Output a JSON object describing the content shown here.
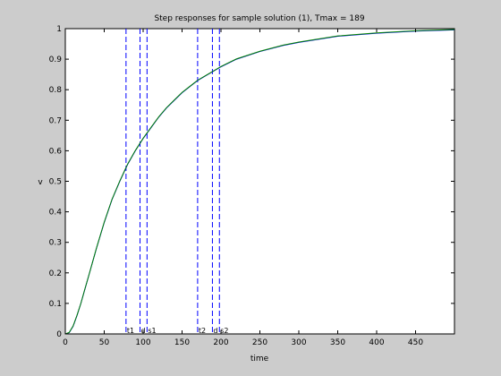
{
  "figure": {
    "background": "#cccccc"
  },
  "chart_data": {
    "type": "line",
    "title": "Step responses for sample solution (1), Tmax = 189",
    "xlabel": "time",
    "ylabel": "v",
    "xlim": [
      0,
      500
    ],
    "ylim": [
      0,
      1
    ],
    "grid": false,
    "xticks": [
      0,
      50,
      100,
      150,
      200,
      250,
      300,
      350,
      400,
      450
    ],
    "yticks": [
      0,
      0.1,
      0.2,
      0.3,
      0.4,
      0.5,
      0.6,
      0.7,
      0.8,
      0.9,
      1
    ],
    "series": [
      {
        "color": "#0000ff",
        "style": "solid",
        "x": [
          0,
          5,
          10,
          15,
          20,
          25,
          30,
          40,
          50,
          60,
          70,
          80,
          90,
          100,
          110,
          120,
          130,
          140,
          150,
          160,
          170,
          180,
          190,
          200,
          220,
          250,
          280,
          300,
          350,
          400,
          450,
          500
        ],
        "y": [
          0,
          0.004,
          0.025,
          0.06,
          0.1,
          0.145,
          0.19,
          0.28,
          0.365,
          0.44,
          0.5,
          0.555,
          0.6,
          0.64,
          0.675,
          0.71,
          0.74,
          0.765,
          0.79,
          0.81,
          0.83,
          0.845,
          0.86,
          0.875,
          0.9,
          0.925,
          0.945,
          0.955,
          0.975,
          0.985,
          0.992,
          0.996
        ]
      },
      {
        "color": "#008000",
        "style": "solid",
        "x": [
          0,
          5,
          10,
          15,
          20,
          25,
          30,
          40,
          50,
          60,
          70,
          80,
          90,
          100,
          110,
          120,
          130,
          140,
          150,
          160,
          170,
          180,
          190,
          200,
          220,
          250,
          280,
          300,
          350,
          400,
          450,
          500
        ],
        "y": [
          0,
          0.005,
          0.026,
          0.061,
          0.1,
          0.146,
          0.19,
          0.281,
          0.366,
          0.441,
          0.501,
          0.556,
          0.601,
          0.641,
          0.676,
          0.711,
          0.741,
          0.766,
          0.791,
          0.811,
          0.831,
          0.846,
          0.861,
          0.876,
          0.901,
          0.926,
          0.946,
          0.956,
          0.976,
          0.986,
          0.993,
          0.997
        ]
      }
    ],
    "vlines": [
      {
        "x": 78,
        "label": "t1",
        "color": "#0000ff"
      },
      {
        "x": 96,
        "label": "d",
        "color": "#0000ff"
      },
      {
        "x": 105,
        "label": "s1",
        "color": "#0000ff"
      },
      {
        "x": 170,
        "label": "t2",
        "color": "#0000ff"
      },
      {
        "x": 189,
        "label": "d",
        "color": "#0000ff"
      },
      {
        "x": 198,
        "label": "s2",
        "color": "#0000ff"
      }
    ]
  }
}
